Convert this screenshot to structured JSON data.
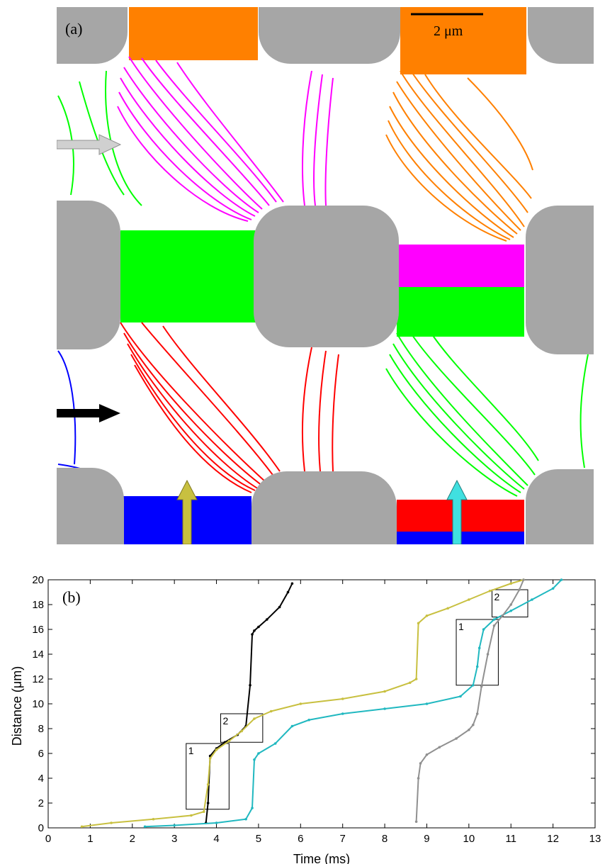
{
  "panel_a": {
    "label": "(a)",
    "scale_bar_label": "2 μm",
    "colors": {
      "post": "#a6a6a6",
      "orange": "#ff8000",
      "magenta": "#ff00ff",
      "green": "#00ff00",
      "red": "#ff0000",
      "blue": "#0000ff",
      "arrow_gray": "#d0d0d0",
      "arrow_black": "#000000",
      "arrow_olive": "#c8c040",
      "arrow_cyan": "#40e0e0"
    },
    "icons": [
      "gray-arrow-icon",
      "black-arrow-icon",
      "olive-arrow-icon",
      "cyan-arrow-icon"
    ]
  },
  "chart_data": {
    "type": "line",
    "panel_label": "(b)",
    "xlabel": "Time (ms)",
    "ylabel": "Distance (μm)",
    "xlim": [
      0,
      13
    ],
    "ylim": [
      0,
      20
    ],
    "x_ticks": [
      0,
      1,
      2,
      3,
      4,
      5,
      6,
      7,
      8,
      9,
      10,
      11,
      12,
      13
    ],
    "y_ticks": [
      0,
      2,
      4,
      6,
      8,
      10,
      12,
      14,
      16,
      18,
      20
    ],
    "grid": false,
    "legend": "none",
    "series": [
      {
        "color": "#000000",
        "x": [
          3.75,
          3.8,
          3.85,
          4.0,
          4.2,
          4.5,
          4.7,
          4.8,
          4.85,
          4.9,
          5.0,
          5.2,
          5.5,
          5.7,
          5.8
        ],
        "y": [
          0.4,
          2.0,
          5.8,
          6.4,
          6.9,
          7.5,
          8.2,
          11.5,
          15.6,
          15.9,
          16.2,
          16.8,
          17.8,
          19.0,
          19.7
        ]
      },
      {
        "color": "#c8c040",
        "x": [
          0.8,
          1.5,
          2.5,
          3.4,
          3.7,
          3.8,
          3.85,
          4.0,
          4.3,
          4.6,
          4.9,
          5.3,
          6.0,
          7.0,
          8.0,
          8.6,
          8.75,
          8.8,
          9.0,
          9.5,
          10.0,
          10.5,
          11.0,
          11.3
        ],
        "y": [
          0.1,
          0.4,
          0.7,
          1.0,
          1.3,
          3.5,
          5.6,
          6.3,
          7.0,
          7.8,
          8.8,
          9.4,
          10.0,
          10.4,
          11.0,
          11.7,
          12.0,
          16.5,
          17.1,
          17.7,
          18.4,
          19.1,
          19.7,
          20.0
        ]
      },
      {
        "color": "#20b8c0",
        "x": [
          2.3,
          3.0,
          4.0,
          4.7,
          4.85,
          4.9,
          5.0,
          5.4,
          5.8,
          6.2,
          7.0,
          8.0,
          9.0,
          9.8,
          10.1,
          10.2,
          10.25,
          10.35,
          10.6,
          11.0,
          11.5,
          12.0,
          12.2
        ],
        "y": [
          0.1,
          0.2,
          0.4,
          0.7,
          1.6,
          5.5,
          6.0,
          6.8,
          8.2,
          8.7,
          9.2,
          9.6,
          10.0,
          10.6,
          11.5,
          13.0,
          14.5,
          16.0,
          16.8,
          17.5,
          18.4,
          19.3,
          20.0
        ]
      },
      {
        "color": "#909090",
        "x": [
          8.75,
          8.8,
          8.85,
          9.0,
          9.3,
          9.7,
          10.0,
          10.1,
          10.2,
          10.3,
          10.45,
          10.6,
          10.8,
          11.0,
          11.2,
          11.3
        ],
        "y": [
          0.5,
          4.0,
          5.2,
          5.9,
          6.5,
          7.2,
          7.9,
          8.3,
          9.2,
          11.4,
          14.0,
          16.3,
          17.1,
          18.0,
          19.2,
          20.0
        ]
      }
    ],
    "annotations": [
      {
        "label": "1",
        "x0": 3.28,
        "x1": 4.3,
        "y0": 1.5,
        "y1": 6.8
      },
      {
        "label": "2",
        "x0": 4.1,
        "x1": 5.1,
        "y0": 6.9,
        "y1": 9.2
      },
      {
        "label": "1",
        "x0": 9.7,
        "x1": 10.7,
        "y0": 11.5,
        "y1": 16.8
      },
      {
        "label": "2",
        "x0": 10.55,
        "x1": 11.4,
        "y0": 17.0,
        "y1": 19.2
      }
    ]
  }
}
